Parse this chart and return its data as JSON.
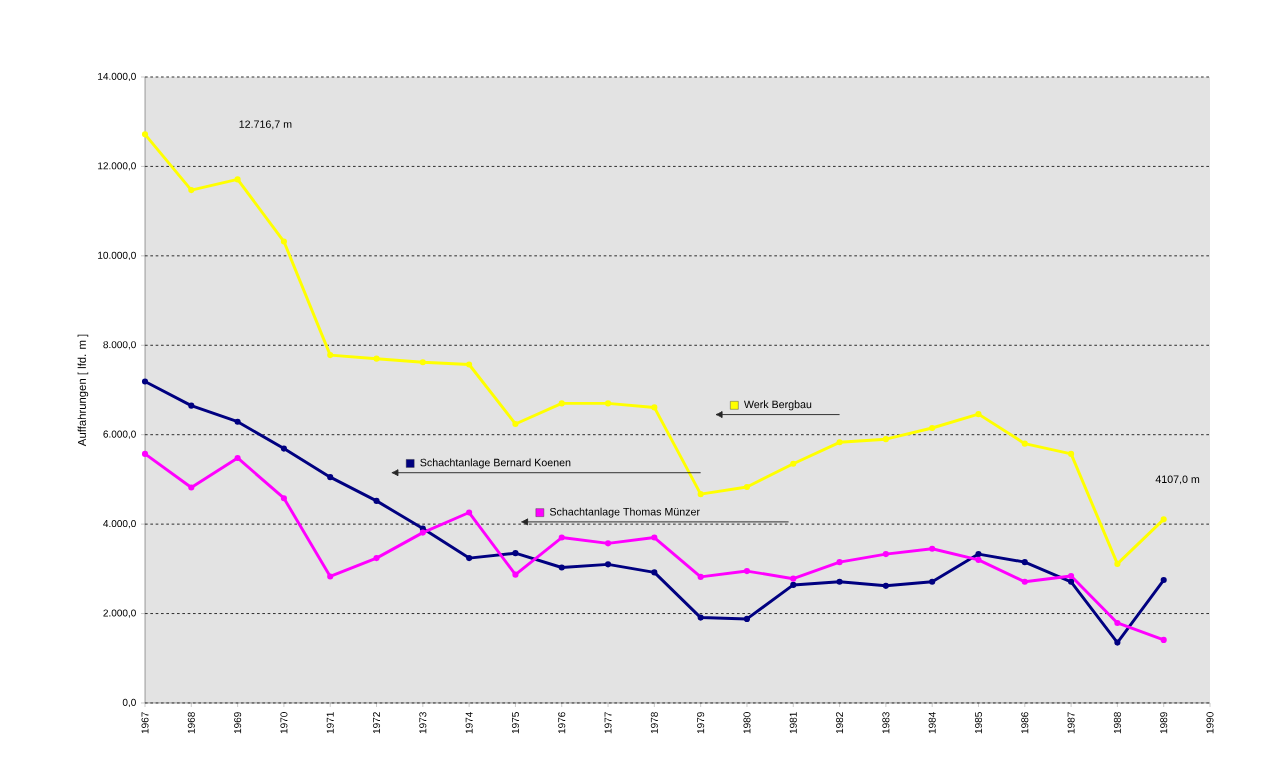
{
  "chart_data": {
    "type": "line",
    "ylabel": "Auffahrungen [ lfd. m ]",
    "categories": [
      "1967",
      "1968",
      "1969",
      "1970",
      "1971",
      "1972",
      "1973",
      "1974",
      "1975",
      "1976",
      "1977",
      "1978",
      "1979",
      "1980",
      "1981",
      "1982",
      "1983",
      "1984",
      "1985",
      "1986",
      "1987",
      "1988",
      "1989",
      "1990"
    ],
    "series": [
      {
        "name": "Werk Bergbau",
        "color": "#ffff00",
        "values": [
          12716.7,
          11470,
          11710,
          10320,
          7780,
          7700,
          7620,
          7570,
          6240,
          6700,
          6700,
          6610,
          4670,
          4830,
          5350,
          5830,
          5900,
          6150,
          6460,
          5800,
          5570,
          3110,
          4107,
          null
        ]
      },
      {
        "name": "Schachtanlage Bernard Koenen",
        "color": "#000080",
        "values": [
          7190,
          6650,
          6290,
          5690,
          5050,
          4520,
          3900,
          3240,
          3350,
          3030,
          3100,
          2920,
          1910,
          1880,
          2640,
          2710,
          2620,
          2710,
          3330,
          3150,
          2710,
          1350,
          2750,
          null
        ]
      },
      {
        "name": "Schachtanlage Thomas Münzer",
        "color": "#ff00ff",
        "values": [
          5570,
          4820,
          5480,
          4580,
          2830,
          3240,
          3810,
          4260,
          2870,
          3700,
          3570,
          3700,
          2820,
          2950,
          2780,
          3150,
          3330,
          3450,
          3200,
          2710,
          2840,
          1790,
          1410,
          null
        ]
      }
    ],
    "ylim": [
      0,
      14000
    ],
    "yticks": [
      {
        "value": 0,
        "label": "0,0"
      },
      {
        "value": 2000,
        "label": "2.000,0"
      },
      {
        "value": 4000,
        "label": "4.000,0"
      },
      {
        "value": 6000,
        "label": "6.000,0"
      },
      {
        "value": 8000,
        "label": "8.000,0"
      },
      {
        "value": 10000,
        "label": "10.000,0"
      },
      {
        "value": 12000,
        "label": "12.000,0"
      },
      {
        "value": 14000,
        "label": "14.000,0"
      }
    ],
    "grid": "y",
    "legend": "center",
    "marker": "circle",
    "line_style": "solid",
    "annotations": [
      "12.716,7 m",
      "4107,0 m"
    ]
  }
}
